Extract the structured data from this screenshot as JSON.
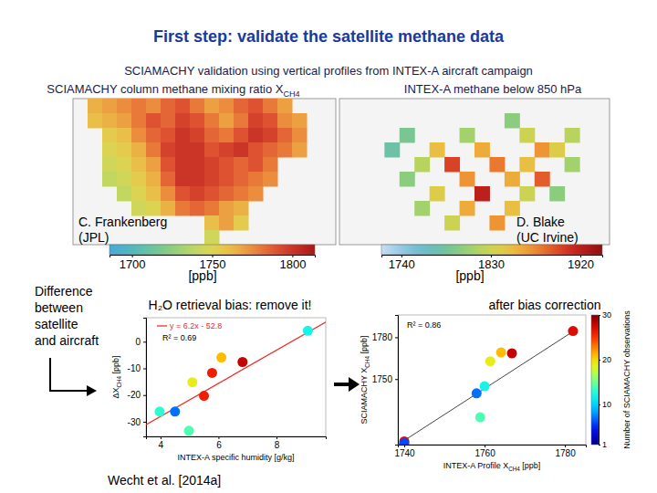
{
  "slide": {
    "title": "First step: validate the satellite methane data",
    "subtitle": "SCIAMACHY validation using vertical profiles from INTEX-A aircraft campaign",
    "difference_label": [
      "Difference",
      "between",
      "satellite",
      "and aircraft"
    ],
    "citation": "Wecht et al. [2014a]"
  },
  "chart_data": [
    {
      "type": "heatmap",
      "title": {
        "text": "SCIAMACHY column methane mixing ratio X",
        "sub": "CH4"
      },
      "credit": [
        "C. Frankenberg",
        "(JPL)"
      ],
      "cells": [
        [
          null,
          1765,
          1770,
          1775,
          1780,
          1775,
          1785,
          1790,
          1780,
          1770,
          1775,
          1785,
          1790,
          1780,
          1770,
          null,
          null,
          null
        ],
        [
          null,
          1760,
          1765,
          1770,
          1780,
          1790,
          1785,
          1795,
          1790,
          1780,
          1770,
          1780,
          1795,
          1790,
          1775,
          1770,
          null,
          null
        ],
        [
          null,
          null,
          1755,
          1760,
          1775,
          1785,
          1790,
          1800,
          1795,
          1785,
          1780,
          1790,
          1800,
          1795,
          1785,
          1775,
          null,
          null
        ],
        [
          null,
          null,
          1750,
          1755,
          1765,
          1780,
          1795,
          1800,
          1800,
          1790,
          1795,
          1800,
          1790,
          1785,
          1780,
          1770,
          null,
          null
        ],
        [
          null,
          null,
          1745,
          1750,
          1760,
          1770,
          1790,
          1800,
          1800,
          1795,
          1790,
          1785,
          1790,
          1780,
          null,
          null,
          null,
          null
        ],
        [
          null,
          null,
          1740,
          1745,
          1755,
          1765,
          1785,
          1800,
          1800,
          1795,
          1790,
          1785,
          1780,
          1775,
          null,
          null,
          null,
          null
        ],
        [
          null,
          null,
          null,
          1740,
          1750,
          1760,
          1775,
          1790,
          1795,
          1790,
          1785,
          1780,
          1775,
          null,
          null,
          null,
          null,
          null
        ],
        [
          null,
          null,
          null,
          null,
          1745,
          1750,
          1765,
          1780,
          1785,
          1780,
          1770,
          1765,
          null,
          null,
          null,
          null,
          null,
          null
        ],
        [
          null,
          null,
          null,
          null,
          null,
          null,
          null,
          null,
          null,
          1760,
          1770,
          1755,
          null,
          null,
          null,
          null,
          null,
          null
        ],
        [
          null,
          null,
          null,
          null,
          null,
          null,
          null,
          null,
          null,
          1745,
          null,
          null,
          null,
          null,
          null,
          null,
          null,
          null
        ]
      ],
      "colorbar": {
        "range": [
          1686,
          1814
        ],
        "ticks": [
          1700,
          1750,
          1800
        ],
        "label": "[ppb]"
      }
    },
    {
      "type": "heatmap",
      "title": {
        "text": "INTEX-A methane below 850 hPa"
      },
      "credit": [
        "D. Blake",
        "(UC Irvine)"
      ],
      "cells": [
        [
          null,
          null,
          null,
          null,
          null,
          null,
          null,
          null,
          null,
          null,
          null,
          null,
          null,
          null,
          null,
          null,
          null,
          null
        ],
        [
          null,
          null,
          null,
          null,
          null,
          null,
          null,
          null,
          null,
          null,
          null,
          1800,
          null,
          null,
          null,
          null,
          null,
          null
        ],
        [
          null,
          null,
          null,
          null,
          1790,
          null,
          null,
          null,
          1810,
          null,
          null,
          null,
          1830,
          null,
          null,
          1820,
          null,
          null
        ],
        [
          null,
          null,
          null,
          1780,
          null,
          null,
          1850,
          null,
          null,
          1860,
          null,
          null,
          null,
          1870,
          1840,
          null,
          null,
          null
        ],
        [
          null,
          null,
          null,
          null,
          null,
          1820,
          null,
          1900,
          null,
          null,
          1880,
          null,
          1850,
          null,
          null,
          1810,
          null,
          null
        ],
        [
          null,
          null,
          null,
          null,
          1800,
          null,
          null,
          null,
          1870,
          null,
          null,
          1860,
          null,
          1890,
          null,
          null,
          null,
          null
        ],
        [
          null,
          null,
          null,
          null,
          null,
          null,
          1840,
          null,
          null,
          1920,
          null,
          null,
          1830,
          null,
          1800,
          null,
          null,
          null
        ],
        [
          null,
          null,
          null,
          null,
          null,
          1810,
          null,
          null,
          1860,
          null,
          null,
          1850,
          null,
          null,
          null,
          null,
          null,
          null
        ],
        [
          null,
          null,
          null,
          null,
          null,
          null,
          null,
          1830,
          null,
          null,
          1870,
          null,
          null,
          null,
          null,
          null,
          null,
          null
        ],
        [
          null,
          null,
          null,
          null,
          null,
          null,
          null,
          null,
          null,
          null,
          null,
          null,
          null,
          null,
          null,
          null,
          null,
          null
        ]
      ],
      "colorbar": {
        "range": [
          1720,
          1942
        ],
        "ticks": [
          1740,
          1830,
          1920
        ],
        "label": "[ppb]"
      }
    },
    {
      "type": "scatter",
      "title": "H₂O retrieval bias: remove it!",
      "xlabel": {
        "text": "INTEX-A specific humidity [g/kg]"
      },
      "ylabel": {
        "text": "ΔX",
        "sub": "CH4",
        "after": " [ppb]"
      },
      "x": [
        9.08,
        6.1,
        5.1,
        5.78,
        6.83,
        5.5,
        3.97,
        4.5,
        4.98
      ],
      "y": [
        4.1,
        -5.9,
        -15.2,
        -11.7,
        -7.6,
        -20.3,
        -26.2,
        -26.2,
        -33.4
      ],
      "observations": [
        12,
        21,
        19,
        26,
        28,
        26,
        13,
        7,
        14
      ],
      "xlim": [
        3.5,
        9.7
      ],
      "ylim": [
        -35.5,
        9
      ],
      "xticks": [
        4,
        6,
        8
      ],
      "yticks": [
        0,
        -10,
        -20,
        -30
      ],
      "fit": {
        "slope": 6.2,
        "intercept": -52.8,
        "label": "y = 6.2x - 52.8",
        "color": "#e8302a"
      },
      "r2_label": "R² = 0.69"
    },
    {
      "type": "scatter",
      "title": "after bias correction",
      "xlabel": {
        "text": "INTEX-A Profile X",
        "sub": "CH4",
        "after": " [ppb]"
      },
      "ylabel": {
        "text": "SCIAMACHY X",
        "sub": "CH4",
        "after": " [ppb]"
      },
      "x": [
        1782,
        1764.1,
        1766.8,
        1761.4,
        1760,
        1758,
        1758.9,
        1740,
        1740
      ],
      "y": [
        1784.5,
        1769.1,
        1768.5,
        1762.8,
        1744.9,
        1739.8,
        1722.6,
        1705.3,
        1704
      ],
      "observations": [
        27,
        21,
        28,
        19,
        12,
        7,
        14,
        27,
        6
      ],
      "xlim": [
        1738.4,
        1785.2
      ],
      "ylim": [
        1703,
        1796
      ],
      "xticks": [
        1740,
        1760,
        1780
      ],
      "yticks": [
        1750,
        1780
      ],
      "reference_line": {
        "x": [
          1738.4,
          1783
        ],
        "y": [
          1703,
          1786
        ],
        "color": "#444444"
      },
      "r2_label": "R² = 0.86",
      "colorbar": {
        "label": "Number of SCIAMACHY observations",
        "range": [
          1,
          30
        ],
        "ticks": [
          1,
          10,
          20,
          30
        ]
      }
    }
  ]
}
